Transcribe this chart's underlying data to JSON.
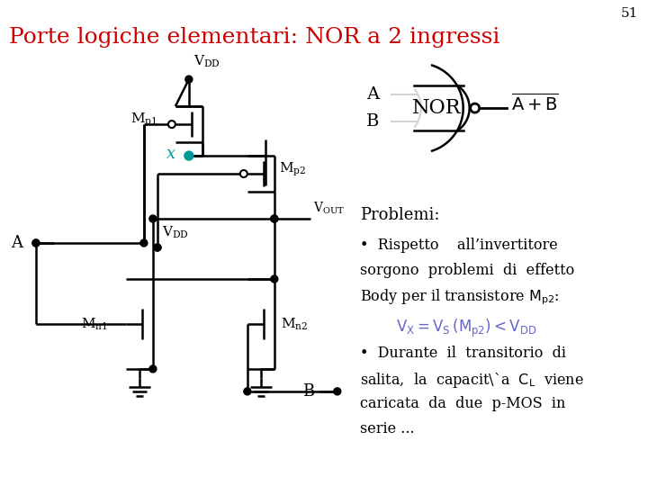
{
  "title": "Porte logiche elementari: NOR a 2 ingressi",
  "slide_number": "51",
  "title_color": "#cc0000",
  "title_fontsize": 18,
  "bg_color": "#ffffff",
  "text_color": "#000000",
  "blue_color": "#6666cc",
  "circuit_color": "#000000",
  "teal_color": "#009999",
  "problemi_text": "Problemi:",
  "bullet1_line1": "Rispetto    all’invertitore",
  "bullet1_line2": "sorgono  problemi  di  effetto",
  "bullet1_line3": "Body per il transistore M",
  "bullet1_line3b": "p2",
  "bullet1_line3c": ":",
  "formula": "V",
  "formula_x": "X",
  "formula_eq": " = V",
  "formula_s": "S",
  "formula_mp2": " (M",
  "formula_sub": "p2",
  "formula_end": ") < V",
  "formula_dd": "DD",
  "bullet2_line1": "•  Durante  il  transitorio  di",
  "bullet2_line2": "salita,  la  capacità  C",
  "bullet2_line2b": "L",
  "bullet2_line2c": "  viene",
  "bullet2_line3": "caricata  da  due  p-MOS  in",
  "bullet2_line4": "serie ..."
}
